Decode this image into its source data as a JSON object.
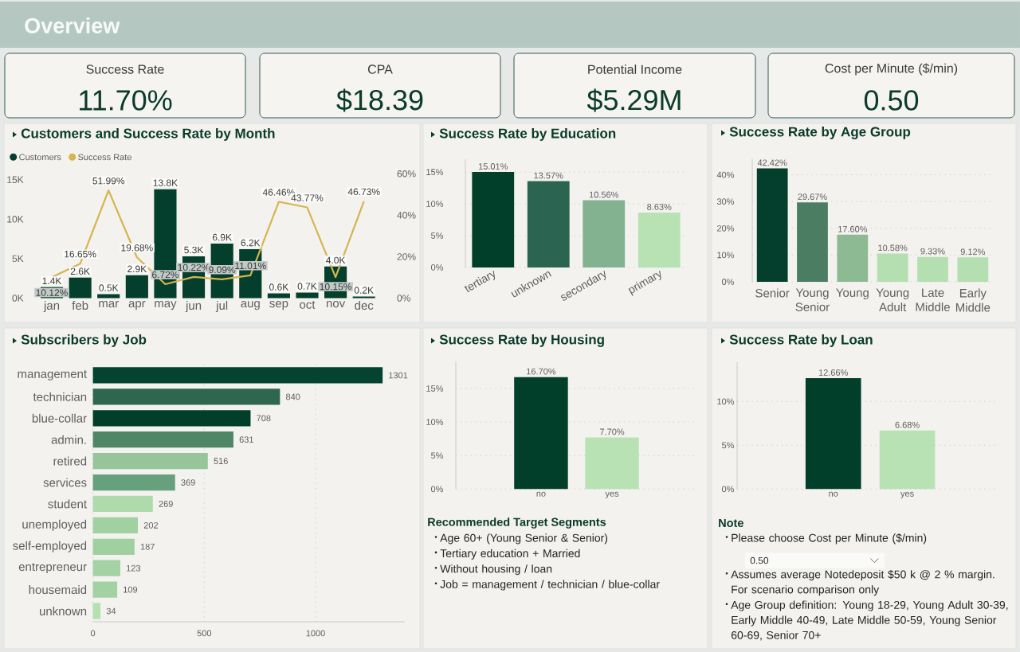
{
  "chart_data": [
    {
      "type": "other",
      "title": "Overview",
      "categories": [
        "Success Rate",
        "CPA",
        "Potential Income",
        "Cost per Minute ($/min)"
      ],
      "value_labels": [
        "11.70%",
        "$18.39",
        "$5.29M",
        "0.50"
      ]
    },
    {
      "type": "bar",
      "title": "Customers and Success Rate by Month",
      "categories": [
        "jan",
        "feb",
        "mar",
        "apr",
        "may",
        "jun",
        "jul",
        "aug",
        "sep",
        "oct",
        "nov",
        "dec"
      ],
      "series": [
        {
          "name": "Customers",
          "type": "bar",
          "color": "#033f2c",
          "values": [
            1400,
            2600,
            500,
            2900,
            13800,
            5300,
            6900,
            6200,
            600,
            700,
            4000,
            200
          ],
          "value_labels": [
            "1.4K",
            "2.6K",
            "0.5K",
            "2.9K",
            "13.8K",
            "5.3K",
            "6.9K",
            "6.2K",
            "0.6K",
            "0.7K",
            "4.0K",
            "0.2K"
          ]
        },
        {
          "name": "Success Rate",
          "type": "line",
          "axis": "y2",
          "color": "#d6b44f",
          "values": [
            10.12,
            16.65,
            51.99,
            19.68,
            6.72,
            10.22,
            9.09,
            11.01,
            46.46,
            43.77,
            10.15,
            46.73
          ],
          "value_labels": [
            "10.12%",
            "16.65%",
            "51.99%",
            "19.68%",
            "6.72%",
            "10.22%",
            "9.09%",
            "11.01%",
            "46.46%",
            "43.77%",
            "10.15%",
            "46.73%"
          ]
        }
      ],
      "ylim": [
        0,
        15750
      ],
      "yticks": [
        {
          "value": 0,
          "label": "0K"
        },
        {
          "value": 5000,
          "label": "5K"
        },
        {
          "value": 10000,
          "label": "10K"
        },
        {
          "value": 15000,
          "label": "15K"
        }
      ],
      "y2lim": [
        0,
        60
      ],
      "y2ticks": [
        {
          "value": 0,
          "label": "0%"
        },
        {
          "value": 20,
          "label": "20%"
        },
        {
          "value": 40,
          "label": "40%"
        },
        {
          "value": 60,
          "label": "60%"
        }
      ],
      "legend": "top left"
    },
    {
      "type": "bar",
      "title": "Success Rate by Education",
      "categories": [
        "tertiary",
        "unknown",
        "secondary",
        "primary"
      ],
      "values": [
        15.01,
        13.57,
        10.56,
        8.63
      ],
      "colors": [
        "#023f2b",
        "#2b6450",
        "#82b28f",
        "#b8e1b4"
      ],
      "value_labels": [
        "15.01%",
        "13.57%",
        "10.56%",
        "8.63%"
      ],
      "ylim": [
        0,
        17
      ],
      "yticks": [
        {
          "value": 0,
          "label": "0%"
        },
        {
          "value": 5,
          "label": "5%"
        },
        {
          "value": 10,
          "label": "10%"
        },
        {
          "value": 15,
          "label": "15%"
        }
      ],
      "grid": "y"
    },
    {
      "type": "bar",
      "title": "Success Rate by Age Group",
      "categories": [
        "Senior",
        "Young Senior",
        "Young",
        "Young Adult",
        "Late Middle",
        "Early Middle"
      ],
      "values": [
        42.42,
        29.67,
        17.6,
        10.58,
        9.33,
        9.12
      ],
      "colors": [
        "#033f2c",
        "#4a7d62",
        "#8dba93",
        "#b4dfb1",
        "#b4dfb1",
        "#b4dfb1"
      ],
      "value_labels": [
        "42.42%",
        "29.67%",
        "17.60%",
        "10.58%",
        "9.33%",
        "9.12%"
      ],
      "ylim": [
        0,
        46
      ],
      "yticks": [
        {
          "value": 0,
          "label": "0%"
        },
        {
          "value": 10,
          "label": "10%"
        },
        {
          "value": 20,
          "label": "20%"
        },
        {
          "value": 30,
          "label": "30%"
        },
        {
          "value": 40,
          "label": "40%"
        }
      ],
      "grid": "y"
    },
    {
      "type": "bar",
      "orientation": "horizontal",
      "title": "Subscribers by Job",
      "categories": [
        "management",
        "technician",
        "blue-collar",
        "admin.",
        "retired",
        "services",
        "student",
        "unemployed",
        "self-employed",
        "entrepreneur",
        "housemaid",
        "unknown"
      ],
      "values": [
        1301,
        840,
        708,
        631,
        516,
        369,
        269,
        202,
        187,
        123,
        109,
        34
      ],
      "colors": [
        "#034330",
        "#2e6650",
        "#023f2b",
        "#4e8666",
        "#96c59c",
        "#67a07d",
        "#aedaac",
        "#a1d1a1",
        "#a0d0a0",
        "#a3d3a4",
        "#a2d1a3",
        "#b4e0b2"
      ],
      "data_labels": true,
      "xlim": [
        0,
        1400
      ],
      "xticks": [
        0,
        500,
        1000
      ],
      "grid": "x"
    },
    {
      "type": "bar",
      "title": "Success Rate by Housing",
      "categories": [
        "no",
        "yes"
      ],
      "values": [
        16.7,
        7.7
      ],
      "colors": [
        "#023f2b",
        "#b8e2b4"
      ],
      "value_labels": [
        "16.70%",
        "7.70%"
      ],
      "ylim": [
        0,
        19
      ],
      "yticks": [
        {
          "value": 0,
          "label": "0%"
        },
        {
          "value": 5,
          "label": "5%"
        },
        {
          "value": 10,
          "label": "10%"
        },
        {
          "value": 15,
          "label": "15%"
        }
      ],
      "grid": "y"
    },
    {
      "type": "bar",
      "title": "Success Rate by Loan",
      "categories": [
        "no",
        "yes"
      ],
      "values": [
        12.66,
        6.68
      ],
      "colors": [
        "#023f2b",
        "#b8e2b4"
      ],
      "value_labels": [
        "12.66%",
        "6.68%"
      ],
      "ylim": [
        0,
        14.5
      ],
      "yticks": [
        {
          "value": 0,
          "label": "0%"
        },
        {
          "value": 5,
          "label": "5%"
        },
        {
          "value": 10,
          "label": "10%"
        }
      ],
      "grid": "y"
    },
    {
      "type": "other",
      "title": "Recommended Target Segments",
      "annotations": [
        "Age 60+ (Young Senior & Senior)",
        "Tertiary education + Married",
        "Without housing / loan",
        "Job = management / technician / blue-collar"
      ]
    },
    {
      "type": "other",
      "title": "Note",
      "annotations": [
        "Please choose Cost per Minute ($/min)",
        "0.50",
        "Assumes average Notedeposit $50 k @ 2 % margin. For scenario comparison only",
        "Age Group definition: Young 18-29, Young Adult 30-39, Early Middle 40-49, Late Middle 50-59, Young Senior 60-69, Senior 70+"
      ]
    }
  ]
}
